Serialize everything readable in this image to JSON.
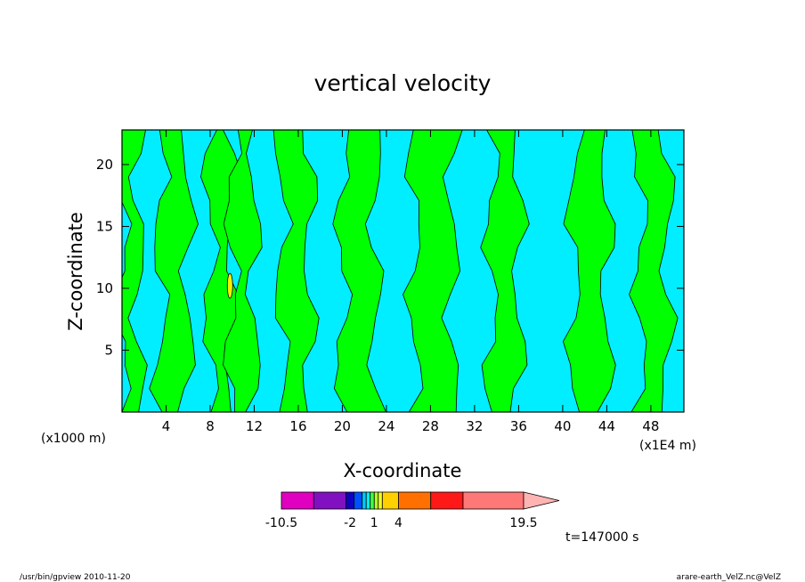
{
  "chart_data": {
    "type": "heatmap",
    "title": "vertical velocity",
    "xlabel": "X-coordinate",
    "ylabel": "Z-coordinate",
    "x_unit_left": "(x1000 m)",
    "x_unit_right": "(x1E4 m)",
    "xlim": [
      0,
      51
    ],
    "ylim": [
      0,
      22.8
    ],
    "x_ticks": [
      4,
      8,
      12,
      16,
      20,
      24,
      28,
      32,
      36,
      40,
      44,
      48
    ],
    "y_ticks": [
      5,
      10,
      15,
      20
    ],
    "time_label": "t=147000 s",
    "colorbar": {
      "levels": [
        -10.5,
        -6.5,
        -2.5,
        -1.5,
        -0.5,
        0.0,
        0.5,
        1,
        1.5,
        2,
        4,
        8,
        12,
        19.5
      ],
      "labels": [
        "-10.5",
        "-2",
        "1",
        "4",
        "19.5"
      ],
      "label_values": [
        -10.5,
        -2,
        1,
        4,
        19.5
      ],
      "colors": [
        "#e000c0",
        "#8010c0",
        "#1000c0",
        "#0050ff",
        "#00c8ff",
        "#00f0f0",
        "#40ff40",
        "#b0ff30",
        "#f0ff20",
        "#ffd000",
        "#ff7000",
        "#ff1818",
        "#ff7878"
      ],
      "extend_color": "#ffb4b4"
    },
    "field_colors": {
      "positive_weak": "#00ff00",
      "negative_weak": "#00eeff",
      "strong": "#f8f000"
    },
    "region_x": [
      0,
      1.5,
      3.5,
      6,
      8,
      10,
      12,
      14.5,
      17,
      20,
      23,
      26.5,
      30,
      33.5,
      36,
      38,
      41,
      44,
      47,
      49.5,
      51
    ],
    "region_sign": [
      1,
      0,
      1,
      0,
      1,
      1,
      0,
      1,
      0,
      1,
      0,
      1,
      0,
      1,
      0,
      0,
      1,
      0,
      1,
      0
    ]
  },
  "footer": {
    "left": "/usr/bin/gpview  2010-11-20",
    "right": "arare-earth_VelZ.nc@VelZ"
  }
}
